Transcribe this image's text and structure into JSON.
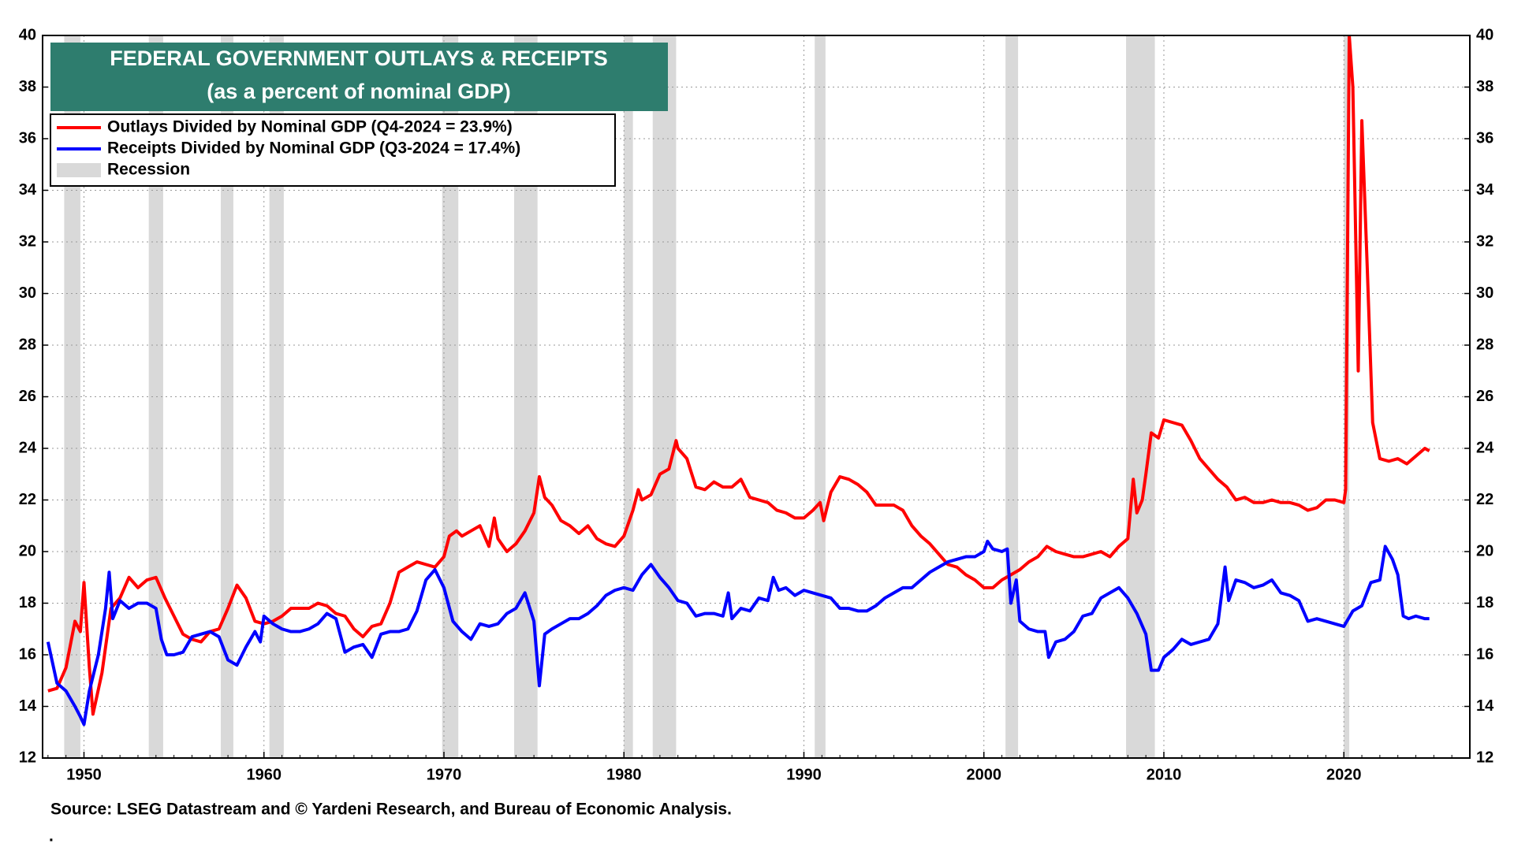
{
  "chart_data": {
    "type": "line",
    "title": "FEDERAL GOVERNMENT OUTLAYS & RECEIPTS",
    "subtitle": "(as a percent of nominal GDP)",
    "source": "Source: LSEG Datastream and © Yardeni Research, and Bureau of Economic Analysis.",
    "footnote": ".",
    "recession_label": "Recession",
    "recession_color": "#d9d9d9",
    "recessions": [
      [
        1948.9,
        1949.8
      ],
      [
        1953.6,
        1954.4
      ],
      [
        1957.6,
        1958.3
      ],
      [
        1960.3,
        1961.1
      ],
      [
        1969.9,
        1970.8
      ],
      [
        1973.9,
        1975.2
      ],
      [
        1980.0,
        1980.5
      ],
      [
        1981.6,
        1982.9
      ],
      [
        1990.6,
        1991.2
      ],
      [
        2001.2,
        2001.9
      ],
      [
        2007.9,
        2009.5
      ],
      [
        2020.0,
        2020.3
      ]
    ],
    "xlim": [
      1947.7,
      2027.0
    ],
    "xticks": [
      1950,
      1960,
      1970,
      1980,
      1990,
      2000,
      2010,
      2020
    ],
    "ylim": [
      12,
      40
    ],
    "yticks": [
      12,
      14,
      16,
      18,
      20,
      22,
      24,
      26,
      28,
      30,
      32,
      34,
      36,
      38,
      40
    ],
    "y2lim": [
      12,
      40
    ],
    "y2ticks": [
      12,
      14,
      16,
      18,
      20,
      22,
      24,
      26,
      28,
      30,
      32,
      34,
      36,
      38,
      40
    ],
    "grid": true,
    "legend": "upper left",
    "series": [
      {
        "name": "Outlays Divided by Nominal GDP (Q4-2024 = 23.9%)",
        "color": "#ff0000",
        "x": [
          1948.0,
          1948.5,
          1949.0,
          1949.5,
          1949.8,
          1950.0,
          1950.3,
          1950.5,
          1951.0,
          1951.5,
          1952.0,
          1952.5,
          1953.0,
          1953.5,
          1954.0,
          1954.5,
          1955.0,
          1955.5,
          1956.0,
          1956.5,
          1957.0,
          1957.5,
          1958.0,
          1958.5,
          1959.0,
          1959.5,
          1960.0,
          1960.5,
          1961.0,
          1961.5,
          1962.0,
          1962.5,
          1963.0,
          1963.5,
          1964.0,
          1964.5,
          1965.0,
          1965.5,
          1966.0,
          1966.5,
          1967.0,
          1967.5,
          1968.0,
          1968.5,
          1969.0,
          1969.5,
          1970.0,
          1970.3,
          1970.7,
          1971.0,
          1971.5,
          1972.0,
          1972.5,
          1972.8,
          1973.0,
          1973.5,
          1974.0,
          1974.5,
          1975.0,
          1975.3,
          1975.6,
          1976.0,
          1976.5,
          1977.0,
          1977.5,
          1978.0,
          1978.5,
          1979.0,
          1979.5,
          1980.0,
          1980.5,
          1980.8,
          1981.0,
          1981.5,
          1982.0,
          1982.5,
          1982.9,
          1983.0,
          1983.5,
          1984.0,
          1984.5,
          1985.0,
          1985.5,
          1986.0,
          1986.5,
          1987.0,
          1987.5,
          1988.0,
          1988.5,
          1989.0,
          1989.5,
          1990.0,
          1990.5,
          1990.9,
          1991.1,
          1991.5,
          1992.0,
          1992.5,
          1993.0,
          1993.5,
          1994.0,
          1994.5,
          1995.0,
          1995.5,
          1996.0,
          1996.5,
          1997.0,
          1997.5,
          1998.0,
          1998.5,
          1999.0,
          1999.5,
          2000.0,
          2000.5,
          2001.0,
          2001.5,
          2002.0,
          2002.5,
          2003.0,
          2003.5,
          2004.0,
          2004.5,
          2005.0,
          2005.5,
          2006.0,
          2006.5,
          2007.0,
          2007.5,
          2008.0,
          2008.3,
          2008.5,
          2008.8,
          2009.0,
          2009.3,
          2009.7,
          2010.0,
          2010.5,
          2011.0,
          2011.5,
          2012.0,
          2012.5,
          2013.0,
          2013.5,
          2014.0,
          2014.5,
          2015.0,
          2015.5,
          2016.0,
          2016.5,
          2017.0,
          2017.5,
          2018.0,
          2018.5,
          2019.0,
          2019.5,
          2020.0,
          2020.1,
          2020.3,
          2020.5,
          2020.8,
          2021.0,
          2021.3,
          2021.6,
          2022.0,
          2022.5,
          2023.0,
          2023.5,
          2024.0,
          2024.5,
          2024.75
        ],
        "values": [
          14.6,
          14.7,
          15.5,
          17.3,
          16.9,
          18.8,
          15.5,
          13.7,
          15.3,
          17.8,
          18.2,
          19.0,
          18.6,
          18.9,
          19.0,
          18.2,
          17.5,
          16.8,
          16.6,
          16.5,
          16.9,
          17.0,
          17.8,
          18.7,
          18.2,
          17.3,
          17.2,
          17.3,
          17.5,
          17.8,
          17.8,
          17.8,
          18.0,
          17.9,
          17.6,
          17.5,
          17.0,
          16.7,
          17.1,
          17.2,
          18.0,
          19.2,
          19.4,
          19.6,
          19.5,
          19.4,
          19.8,
          20.6,
          20.8,
          20.6,
          20.8,
          21.0,
          20.2,
          21.3,
          20.5,
          20.0,
          20.3,
          20.8,
          21.5,
          22.9,
          22.1,
          21.8,
          21.2,
          21.0,
          20.7,
          21.0,
          20.5,
          20.3,
          20.2,
          20.6,
          21.6,
          22.4,
          22.0,
          22.2,
          23.0,
          23.2,
          24.3,
          24.0,
          23.6,
          22.5,
          22.4,
          22.7,
          22.5,
          22.5,
          22.8,
          22.1,
          22.0,
          21.9,
          21.6,
          21.5,
          21.3,
          21.3,
          21.6,
          21.9,
          21.2,
          22.3,
          22.9,
          22.8,
          22.6,
          22.3,
          21.8,
          21.8,
          21.8,
          21.6,
          21.0,
          20.6,
          20.3,
          19.9,
          19.5,
          19.4,
          19.1,
          18.9,
          18.6,
          18.6,
          18.9,
          19.1,
          19.3,
          19.6,
          19.8,
          20.2,
          20.0,
          19.9,
          19.8,
          19.8,
          19.9,
          20.0,
          19.8,
          20.2,
          20.5,
          22.8,
          21.5,
          22.0,
          23.0,
          24.6,
          24.4,
          25.1,
          25.0,
          24.9,
          24.3,
          23.6,
          23.2,
          22.8,
          22.5,
          22.0,
          22.1,
          21.9,
          21.9,
          22.0,
          21.9,
          21.9,
          21.8,
          21.6,
          21.7,
          22.0,
          22.0,
          21.9,
          22.4,
          40,
          38,
          27.0,
          36.7,
          31.0,
          25.0,
          23.6,
          23.5,
          23.6,
          23.4,
          23.7,
          24.0,
          23.9
        ]
      },
      {
        "name": "Receipts Divided by Nominal GDP (Q3-2024 = 17.4%)",
        "color": "#0000ff",
        "x": [
          1948.0,
          1948.5,
          1949.0,
          1949.5,
          1949.8,
          1950.0,
          1950.3,
          1950.8,
          1951.2,
          1951.4,
          1951.6,
          1952.0,
          1952.5,
          1953.0,
          1953.5,
          1954.0,
          1954.3,
          1954.6,
          1955.0,
          1955.5,
          1956.0,
          1956.5,
          1957.0,
          1957.5,
          1958.0,
          1958.5,
          1959.0,
          1959.5,
          1959.8,
          1960.0,
          1960.5,
          1961.0,
          1961.5,
          1962.0,
          1962.5,
          1963.0,
          1963.5,
          1964.0,
          1964.5,
          1965.0,
          1965.5,
          1966.0,
          1966.5,
          1967.0,
          1967.5,
          1968.0,
          1968.5,
          1969.0,
          1969.5,
          1970.0,
          1970.5,
          1971.0,
          1971.5,
          1972.0,
          1972.5,
          1973.0,
          1973.5,
          1974.0,
          1974.5,
          1975.0,
          1975.3,
          1975.6,
          1976.0,
          1976.5,
          1977.0,
          1977.5,
          1978.0,
          1978.5,
          1979.0,
          1979.5,
          1980.0,
          1980.5,
          1981.0,
          1981.5,
          1982.0,
          1982.5,
          1983.0,
          1983.5,
          1984.0,
          1984.5,
          1985.0,
          1985.5,
          1985.8,
          1986.0,
          1986.5,
          1987.0,
          1987.5,
          1988.0,
          1988.3,
          1988.6,
          1989.0,
          1989.5,
          1990.0,
          1990.5,
          1991.0,
          1991.5,
          1992.0,
          1992.5,
          1993.0,
          1993.5,
          1994.0,
          1994.5,
          1995.0,
          1995.5,
          1996.0,
          1996.5,
          1997.0,
          1997.5,
          1998.0,
          1998.5,
          1999.0,
          1999.5,
          2000.0,
          2000.2,
          2000.5,
          2001.0,
          2001.3,
          2001.5,
          2001.8,
          2002.0,
          2002.5,
          2003.0,
          2003.4,
          2003.6,
          2004.0,
          2004.5,
          2005.0,
          2005.5,
          2006.0,
          2006.5,
          2007.0,
          2007.5,
          2008.0,
          2008.5,
          2009.0,
          2009.3,
          2009.7,
          2010.0,
          2010.5,
          2011.0,
          2011.5,
          2012.0,
          2012.5,
          2013.0,
          2013.4,
          2013.6,
          2014.0,
          2014.5,
          2015.0,
          2015.5,
          2016.0,
          2016.5,
          2017.0,
          2017.5,
          2018.0,
          2018.5,
          2019.0,
          2019.5,
          2020.0,
          2020.5,
          2021.0,
          2021.5,
          2022.0,
          2022.3,
          2022.7,
          2023.0,
          2023.3,
          2023.6,
          2024.0,
          2024.5,
          2024.75
        ],
        "values": [
          16.5,
          14.9,
          14.6,
          14.0,
          13.6,
          13.3,
          14.6,
          16.0,
          17.8,
          19.2,
          17.4,
          18.1,
          17.8,
          18.0,
          18.0,
          17.8,
          16.6,
          16.0,
          16.0,
          16.1,
          16.7,
          16.8,
          16.9,
          16.7,
          15.8,
          15.6,
          16.3,
          16.9,
          16.5,
          17.5,
          17.2,
          17.0,
          16.9,
          16.9,
          17.0,
          17.2,
          17.6,
          17.4,
          16.1,
          16.3,
          16.4,
          15.9,
          16.8,
          16.9,
          16.9,
          17.0,
          17.7,
          18.9,
          19.3,
          18.6,
          17.3,
          16.9,
          16.6,
          17.2,
          17.1,
          17.2,
          17.6,
          17.8,
          18.4,
          17.3,
          14.8,
          16.8,
          17.0,
          17.2,
          17.4,
          17.4,
          17.6,
          17.9,
          18.3,
          18.5,
          18.6,
          18.5,
          19.1,
          19.5,
          19.0,
          18.6,
          18.1,
          18.0,
          17.5,
          17.6,
          17.6,
          17.5,
          18.4,
          17.4,
          17.8,
          17.7,
          18.2,
          18.1,
          19.0,
          18.5,
          18.6,
          18.3,
          18.5,
          18.4,
          18.3,
          18.2,
          17.8,
          17.8,
          17.7,
          17.7,
          17.9,
          18.2,
          18.4,
          18.6,
          18.6,
          18.9,
          19.2,
          19.4,
          19.6,
          19.7,
          19.8,
          19.8,
          20.0,
          20.4,
          20.1,
          20.0,
          20.1,
          18.0,
          18.9,
          17.3,
          17.0,
          16.9,
          16.9,
          15.9,
          16.5,
          16.6,
          16.9,
          17.5,
          17.6,
          18.2,
          18.4,
          18.6,
          18.2,
          17.6,
          16.8,
          15.4,
          15.4,
          15.9,
          16.2,
          16.6,
          16.4,
          16.5,
          16.6,
          17.2,
          19.4,
          18.1,
          18.9,
          18.8,
          18.6,
          18.7,
          18.9,
          18.4,
          18.3,
          18.1,
          17.3,
          17.4,
          17.3,
          17.2,
          17.1,
          17.7,
          17.9,
          18.8,
          18.9,
          20.2,
          19.7,
          19.1,
          17.5,
          17.4,
          17.5,
          17.4,
          17.4
        ]
      }
    ]
  }
}
